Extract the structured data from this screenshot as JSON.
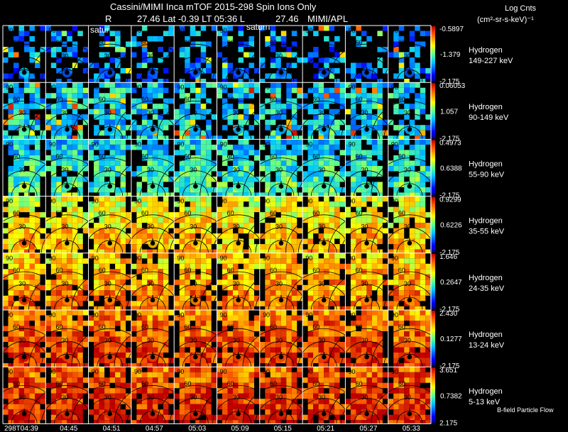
{
  "header": {
    "title_line": "Cassini/MIMI Inca mTOF  2015-298   Spin   Ions Only",
    "info_r_label": "R",
    "info_line": "27.46 Lat -0.39 LT 05:36 L",
    "info_l_value": "27.46",
    "info_org": "MIMI/APL",
    "saturn_labels": [
      "satur",
      "saturn"
    ]
  },
  "colorbar_title": "Log Cnts",
  "colorbar_units": "(cm²-sr-s-keV)⁻¹",
  "footer_note": "B-field Particle Flow",
  "chart_data": {
    "type": "heatmap",
    "title": "Cassini/MIMI Inca mTOF  2015-298   Spin   Ions Only",
    "x_tick_labels": [
      "298T04:39",
      "04:45",
      "04:51",
      "04:57",
      "05:03",
      "05:09",
      "05:15",
      "05:21",
      "05:27",
      "05:33"
    ],
    "polar_ring_labels": [
      "90",
      "60",
      "30"
    ],
    "rows": [
      {
        "species": "Hydrogen",
        "energy": "149-227 keV",
        "max": "-0.5897",
        "mid": "-1.379",
        "min": "-2.175",
        "level": 0.12,
        "sparsity": 0.55
      },
      {
        "species": "Hydrogen",
        "energy": "90-149 keV",
        "max": "0.06053",
        "mid": "1.057",
        "min": "-2.175",
        "level": 0.22,
        "sparsity": 0.22
      },
      {
        "species": "Hydrogen",
        "energy": "55-90 keV",
        "max": "0.4973",
        "mid": "0.6388",
        "min": "-2.175",
        "level": 0.36,
        "sparsity": 0.12
      },
      {
        "species": "Hydrogen",
        "energy": "35-55 keV",
        "max": "0.9299",
        "mid": "0.6226",
        "min": "-2.175",
        "level": 0.62,
        "sparsity": 0.06
      },
      {
        "species": "Hydrogen",
        "energy": "24-35 keV",
        "max": "1.646",
        "mid": "0.2647",
        "min": "-2.175",
        "level": 0.7,
        "sparsity": 0.05
      },
      {
        "species": "Hydrogen",
        "energy": "13-24 keV",
        "max": "2.430",
        "mid": "0.1277",
        "min": "-2.175",
        "level": 0.8,
        "sparsity": 0.04
      },
      {
        "species": "Hydrogen",
        "energy": "5-13 keV",
        "max": "3.651",
        "mid": "0.7382",
        "min": "2.175",
        "level": 0.84,
        "sparsity": 0.03
      }
    ]
  }
}
